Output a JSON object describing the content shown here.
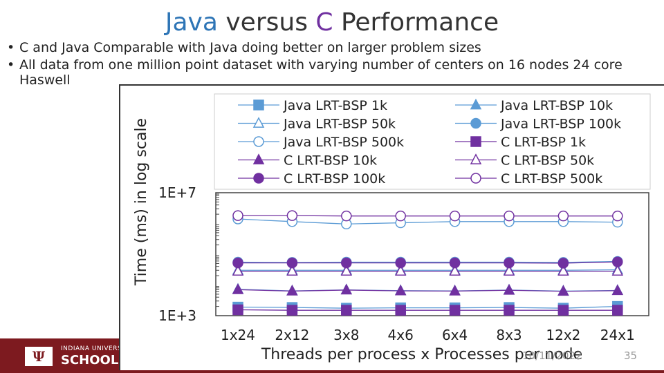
{
  "slide": {
    "title_java": "Java",
    "title_mid": " versus ",
    "title_c": "C",
    "title_end": " Performance",
    "bullets": [
      "C and Java Comparable with Java doing better on larger problem sizes",
      "All data from one million point dataset with varying number of centers on 16 nodes 24 core Haswell"
    ],
    "footer": {
      "logo_glyph": "Ψ",
      "university": "INDIANA UNIVERSITY",
      "school": "SCHOOL",
      "date": "10/11/2022",
      "page": "35"
    },
    "colors": {
      "java": "#5b9bd5",
      "c": "#7030a0",
      "footer": "#7d1a1f"
    }
  },
  "chart_data": {
    "type": "line",
    "ylabel": "Time (ms) in log scale",
    "xlabel": "Threads per process x Processes per node",
    "yscale": "log",
    "ylim": [
      1000,
      10000000
    ],
    "ytick_labels": [
      "1E+3",
      "1E+7"
    ],
    "categories": [
      "1x24",
      "2x12",
      "3x8",
      "4x6",
      "6x4",
      "8x3",
      "12x2",
      "24x1"
    ],
    "legend": "top",
    "series": [
      {
        "name": "Java LRT-BSP 1k",
        "lang": "java",
        "marker": "square",
        "filled": true,
        "values": [
          1900,
          1850,
          1750,
          1800,
          1800,
          1850,
          1750,
          2000
        ]
      },
      {
        "name": "Java LRT-BSP 10k",
        "lang": "java",
        "marker": "triangle",
        "filled": true,
        "values": [
          7200,
          6400,
          6900,
          6500,
          6400,
          6800,
          6300,
          6600
        ]
      },
      {
        "name": "Java LRT-BSP 50k",
        "lang": "java",
        "marker": "triangle",
        "filled": false,
        "values": [
          30000,
          30000,
          30000,
          30000,
          30000,
          30000,
          30000,
          31000
        ]
      },
      {
        "name": "Java LRT-BSP 100k",
        "lang": "java",
        "marker": "circle",
        "filled": true,
        "values": [
          55000,
          54000,
          55000,
          55000,
          55000,
          55000,
          54000,
          58000
        ]
      },
      {
        "name": "Java LRT-BSP 500k",
        "lang": "java",
        "marker": "circle",
        "filled": false,
        "values": [
          1400000,
          1150000,
          960000,
          1050000,
          1150000,
          1150000,
          1150000,
          1100000
        ]
      },
      {
        "name": "C LRT-BSP 1k",
        "lang": "c",
        "marker": "square",
        "filled": true,
        "values": [
          1550,
          1500,
          1500,
          1500,
          1500,
          1500,
          1500,
          1500
        ]
      },
      {
        "name": "C LRT-BSP 10k",
        "lang": "c",
        "marker": "triangle",
        "filled": true,
        "values": [
          7000,
          6300,
          6800,
          6400,
          6300,
          6700,
          6200,
          6500
        ]
      },
      {
        "name": "C LRT-BSP 50k",
        "lang": "c",
        "marker": "triangle",
        "filled": false,
        "values": [
          28000,
          28000,
          28000,
          28000,
          28000,
          28000,
          28000,
          28000
        ]
      },
      {
        "name": "C LRT-BSP 100k",
        "lang": "c",
        "marker": "circle",
        "filled": true,
        "values": [
          52000,
          52000,
          52000,
          52000,
          52000,
          52000,
          51000,
          56000
        ]
      },
      {
        "name": "C LRT-BSP 500k",
        "lang": "c",
        "marker": "circle",
        "filled": false,
        "values": [
          1800000,
          1800000,
          1750000,
          1750000,
          1750000,
          1750000,
          1750000,
          1750000
        ]
      }
    ]
  }
}
